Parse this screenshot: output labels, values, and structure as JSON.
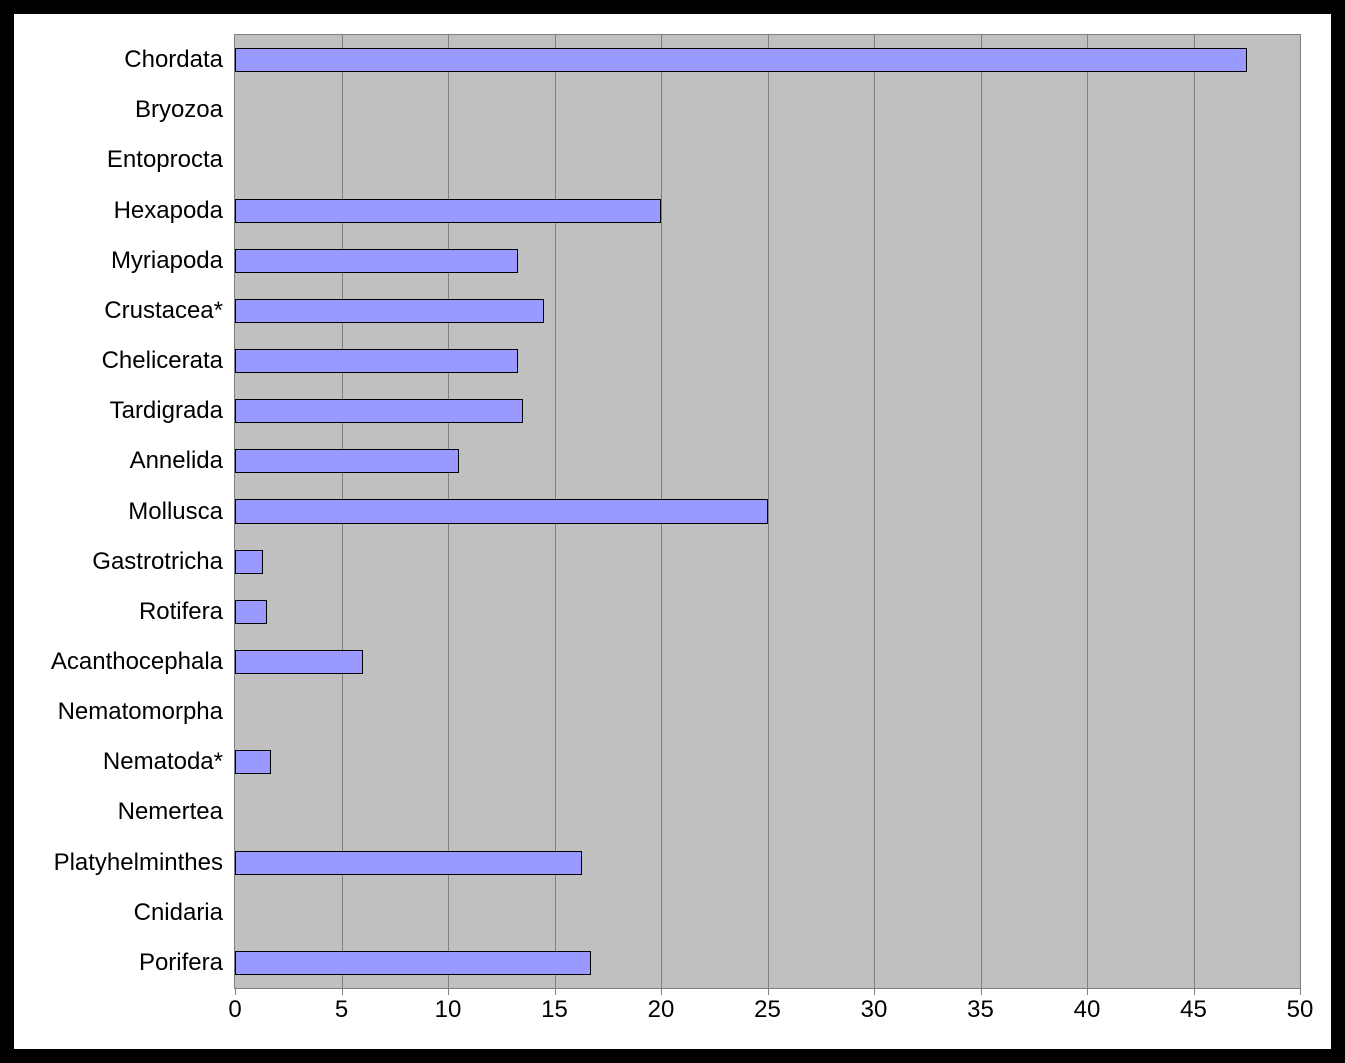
{
  "chart": {
    "type": "bar-horizontal",
    "background_color_outer": "#000000",
    "background_color_card": "#ffffff",
    "plot_background_color": "#c0c0c0",
    "grid_color": "#808080",
    "axis_color": "#808080",
    "bar_fill_color": "#9999ff",
    "bar_border_color": "#000000",
    "label_color": "#000000",
    "label_fontsize": 24,
    "tick_fontsize": 24,
    "x_axis": {
      "min": 0,
      "max": 50,
      "tick_step": 5,
      "ticks": [
        0,
        5,
        10,
        15,
        20,
        25,
        30,
        35,
        40,
        45,
        50
      ]
    },
    "categories": [
      {
        "label": "Chordata",
        "value": 47.5
      },
      {
        "label": "Bryozoa",
        "value": 0
      },
      {
        "label": "Entoprocta",
        "value": 0
      },
      {
        "label": "Hexapoda",
        "value": 20
      },
      {
        "label": "Myriapoda",
        "value": 13.3
      },
      {
        "label": "Crustacea*",
        "value": 14.5
      },
      {
        "label": "Chelicerata",
        "value": 13.3
      },
      {
        "label": "Tardigrada",
        "value": 13.5
      },
      {
        "label": "Annelida",
        "value": 10.5
      },
      {
        "label": "Mollusca",
        "value": 25
      },
      {
        "label": "Gastrotricha",
        "value": 1.3
      },
      {
        "label": "Rotifera",
        "value": 1.5
      },
      {
        "label": "Acanthocephala",
        "value": 6
      },
      {
        "label": "Nematomorpha",
        "value": 0
      },
      {
        "label": "Nematoda*",
        "value": 1.7
      },
      {
        "label": "Nemertea",
        "value": 0
      },
      {
        "label": "Platyhelminthes",
        "value": 16.3
      },
      {
        "label": "Cnidaria",
        "value": 0
      },
      {
        "label": "Porifera",
        "value": 16.7
      }
    ]
  }
}
